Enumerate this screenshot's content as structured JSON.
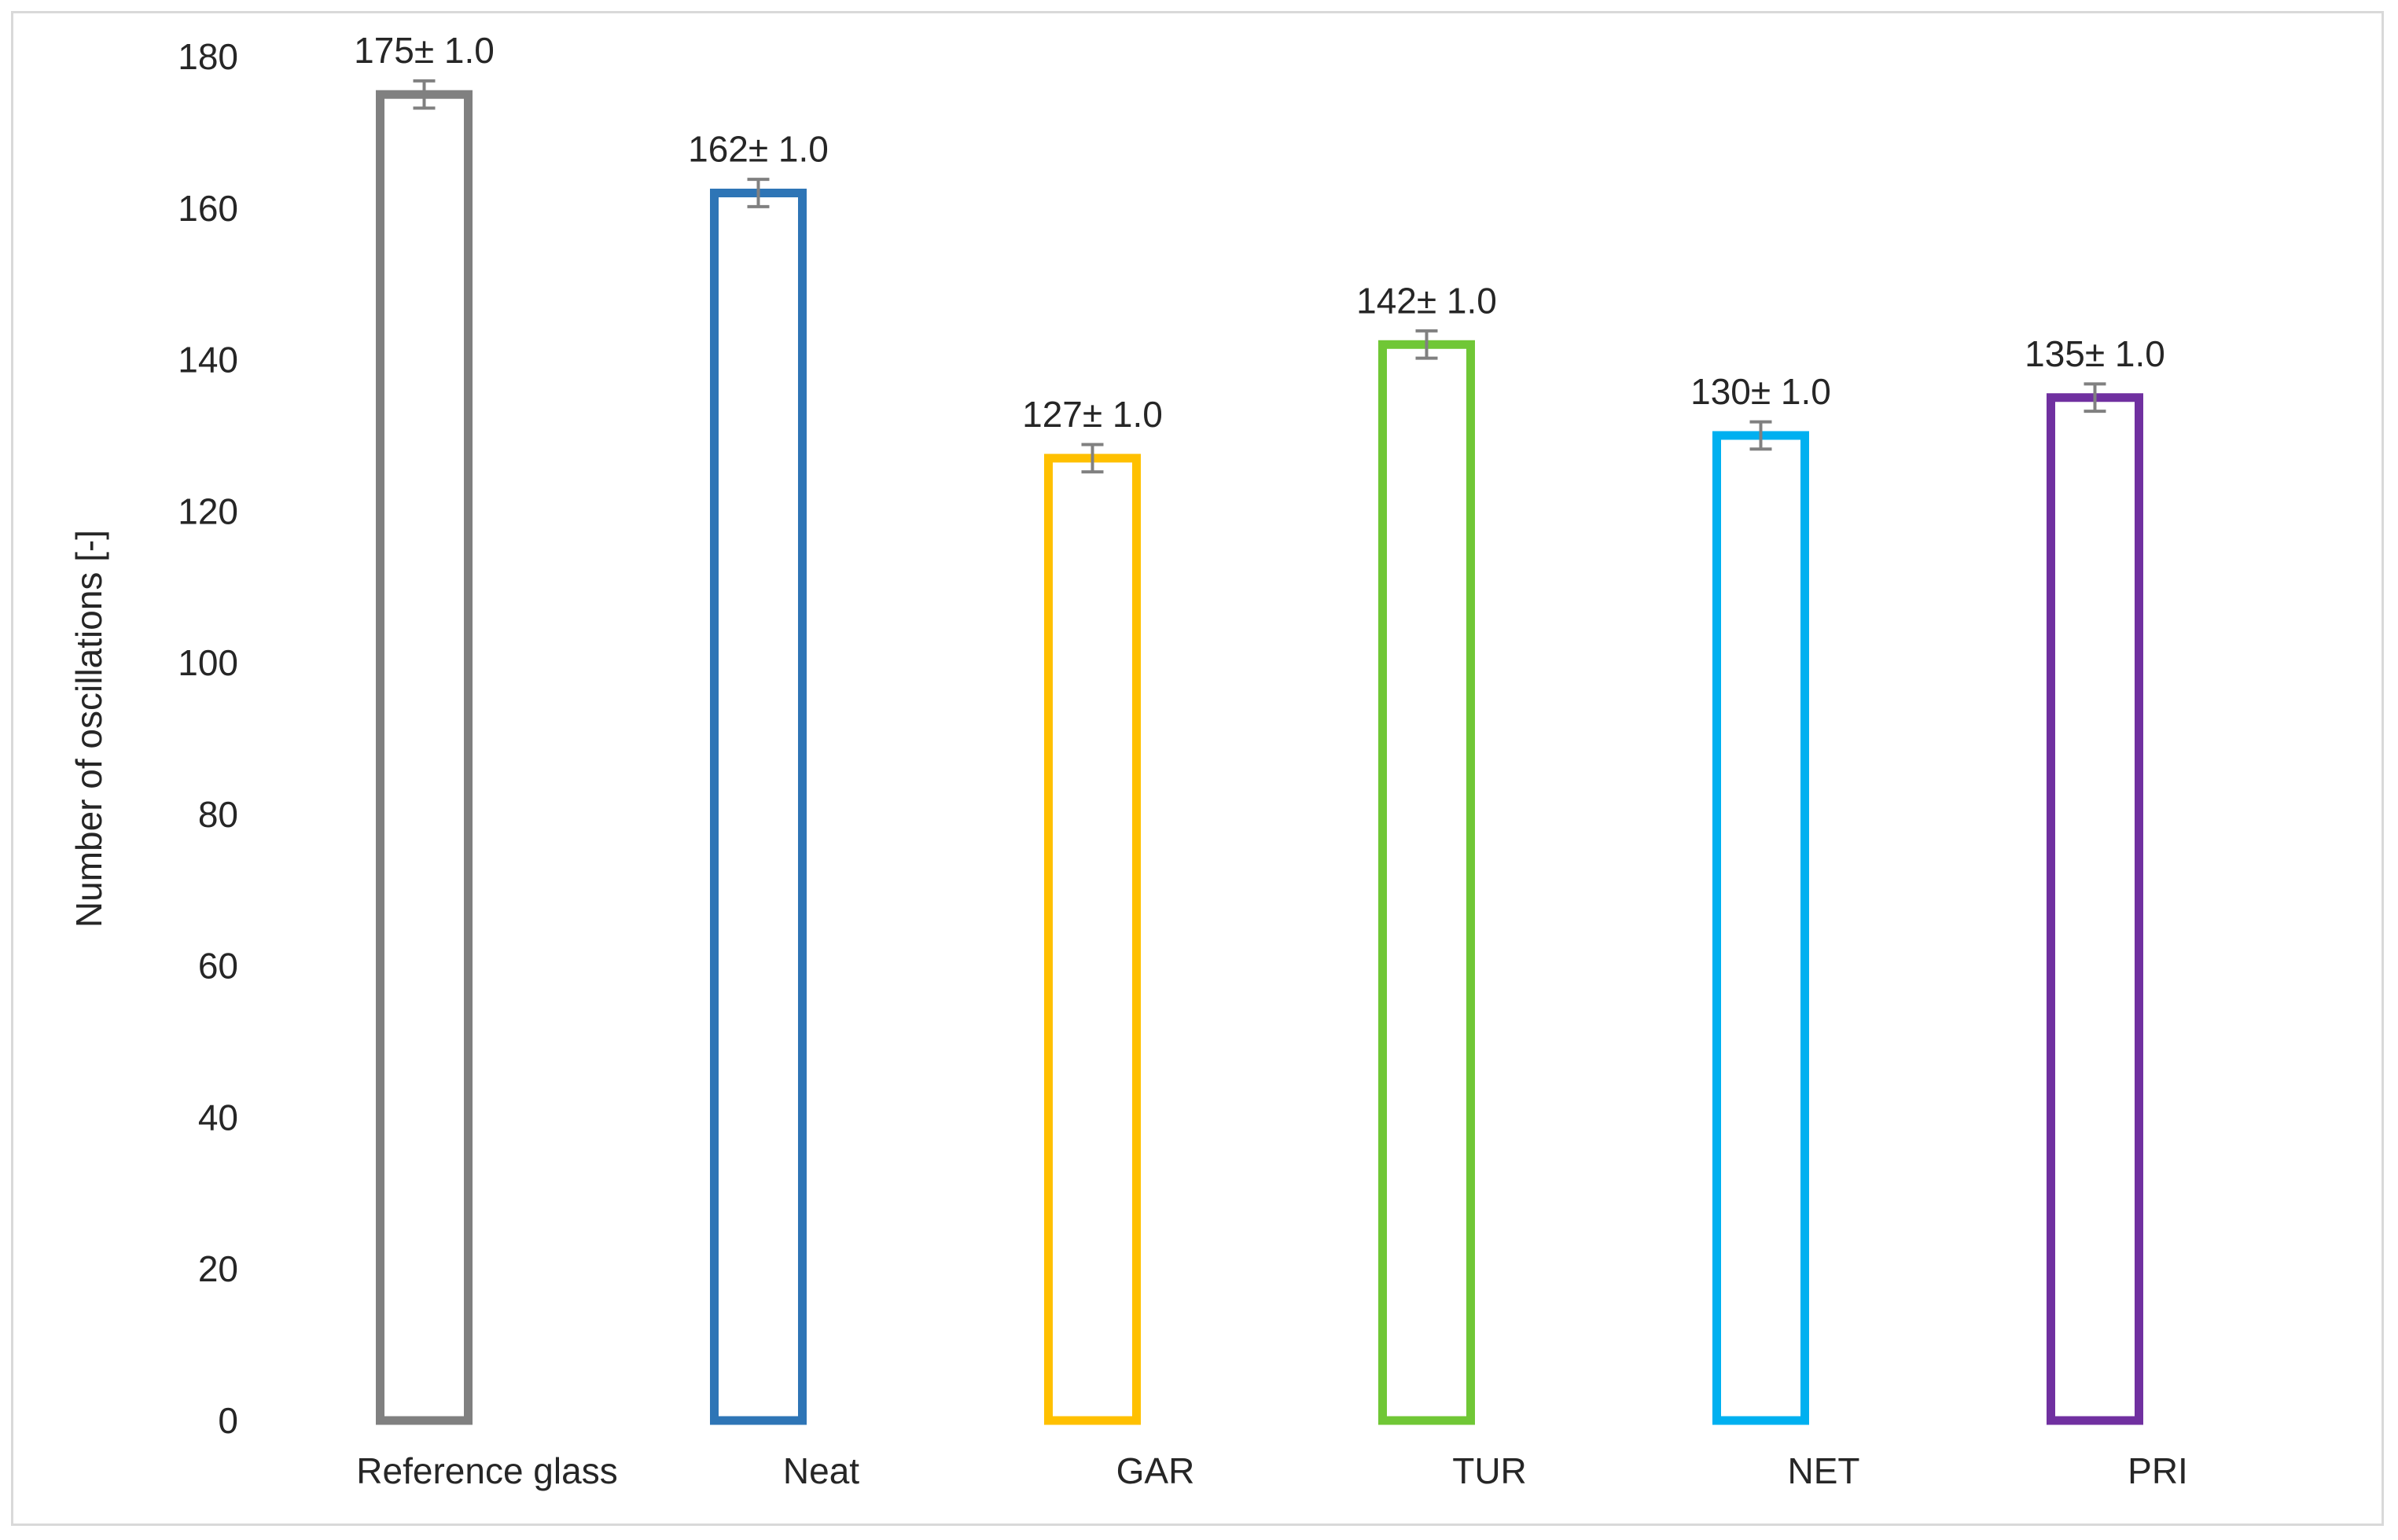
{
  "chart_data": {
    "type": "bar",
    "title": "",
    "xlabel": "",
    "ylabel": "Number of oscillations [-]",
    "ylim": [
      0,
      180
    ],
    "yticks": [
      0,
      20,
      40,
      60,
      80,
      100,
      120,
      140,
      160,
      180
    ],
    "categories": [
      "Reference glass",
      "Neat",
      "GAR",
      "TUR",
      "NET",
      "PRI"
    ],
    "values": [
      175,
      162,
      127,
      142,
      130,
      135
    ],
    "errors": [
      1.0,
      1.0,
      1.0,
      1.0,
      1.0,
      1.0
    ],
    "data_labels": [
      "175± 1.0",
      "162± 1.0",
      "127± 1.0",
      "142± 1.0",
      "130± 1.0",
      "135± 1.0"
    ],
    "bar_colors": [
      "#808080",
      "#2e75b6",
      "#ffc000",
      "#70c736",
      "#00b0f0",
      "#7030a0"
    ],
    "bar_fill": "none",
    "error_bar_color": "#808080",
    "grid": false,
    "legend": "none"
  }
}
